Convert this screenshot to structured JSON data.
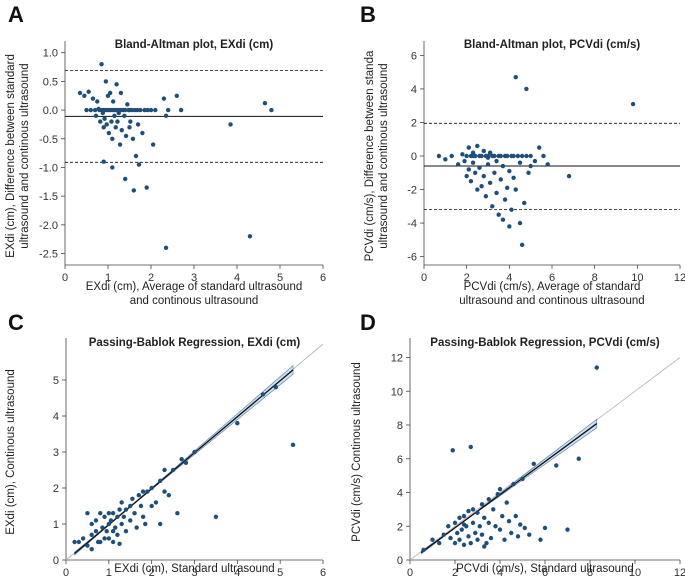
{
  "chart_data": [
    {
      "panel": "A",
      "type": "scatter",
      "title": "Bland-Altman plot, EXdi (cm)",
      "xlabel": [
        "EXdi (cm), Average of standard ultrasound",
        "and continous ultrasound"
      ],
      "ylabel": [
        "EXdi (cm), Difference between standard",
        "ultrasound and continous ultrasound"
      ],
      "xlim": [
        0,
        6
      ],
      "ylim": [
        -2.7,
        1.1
      ],
      "xticks": [
        0,
        1,
        2,
        3,
        4,
        5,
        6
      ],
      "yticks": [
        -2.5,
        -2.0,
        -1.5,
        -1.0,
        -0.5,
        0.0,
        0.5,
        1.0
      ],
      "ytick_labels": [
        "-2.5",
        "-2.0",
        "-1.5",
        "-1.0",
        "-0.5",
        "0.0",
        "0.5",
        "1.0"
      ],
      "mean_line": -0.11,
      "limits": [
        0.69,
        -0.91
      ],
      "points": [
        [
          0.35,
          0.3
        ],
        [
          0.45,
          0.25
        ],
        [
          0.5,
          0.0
        ],
        [
          0.55,
          0.32
        ],
        [
          0.6,
          0.0
        ],
        [
          0.65,
          0.2
        ],
        [
          0.7,
          0.0
        ],
        [
          0.72,
          -0.1
        ],
        [
          0.75,
          0.15
        ],
        [
          0.78,
          0.02
        ],
        [
          0.8,
          0.0
        ],
        [
          0.82,
          -0.2
        ],
        [
          0.85,
          0.8
        ],
        [
          0.86,
          0.0
        ],
        [
          0.88,
          -0.05
        ],
        [
          0.9,
          -0.3
        ],
        [
          0.9,
          0.0
        ],
        [
          0.92,
          -0.15
        ],
        [
          0.95,
          0.0
        ],
        [
          0.95,
          0.5
        ],
        [
          0.97,
          -0.25
        ],
        [
          1.0,
          0.0
        ],
        [
          1.0,
          0.25
        ],
        [
          1.02,
          -0.4
        ],
        [
          1.05,
          0.0
        ],
        [
          1.05,
          0.3
        ],
        [
          1.08,
          -0.2
        ],
        [
          1.1,
          0.0
        ],
        [
          1.1,
          -0.5
        ],
        [
          1.12,
          0.15
        ],
        [
          1.15,
          0.0
        ],
        [
          1.15,
          -0.1
        ],
        [
          1.18,
          -0.3
        ],
        [
          1.2,
          0.0
        ],
        [
          1.2,
          0.45
        ],
        [
          1.22,
          -0.2
        ],
        [
          1.25,
          0.0
        ],
        [
          1.25,
          -0.05
        ],
        [
          1.28,
          -0.6
        ],
        [
          1.3,
          0.0
        ],
        [
          1.3,
          0.3
        ],
        [
          1.32,
          -0.35
        ],
        [
          1.35,
          0.0
        ],
        [
          1.38,
          -0.1
        ],
        [
          1.4,
          0.0
        ],
        [
          1.4,
          -1.2
        ],
        [
          1.42,
          -0.45
        ],
        [
          1.45,
          0.1
        ],
        [
          1.48,
          0.0
        ],
        [
          1.5,
          -0.3
        ],
        [
          1.5,
          0.0
        ],
        [
          1.52,
          -0.2
        ],
        [
          1.55,
          0.0
        ],
        [
          1.58,
          -0.5
        ],
        [
          1.6,
          -1.4
        ],
        [
          1.62,
          0.0
        ],
        [
          1.65,
          -0.8
        ],
        [
          1.68,
          0.0
        ],
        [
          1.7,
          -0.25
        ],
        [
          1.72,
          -0.95
        ],
        [
          1.75,
          0.0
        ],
        [
          1.8,
          -0.4
        ],
        [
          1.85,
          0.0
        ],
        [
          1.9,
          -1.35
        ],
        [
          1.92,
          0.0
        ],
        [
          2.0,
          0.0
        ],
        [
          2.05,
          -0.6
        ],
        [
          2.1,
          0.0
        ],
        [
          2.3,
          0.2
        ],
        [
          2.35,
          -0.1
        ],
        [
          2.35,
          -2.4
        ],
        [
          2.4,
          0.0
        ],
        [
          2.6,
          0.25
        ],
        [
          2.7,
          0.0
        ],
        [
          0.9,
          -0.9
        ],
        [
          3.85,
          -0.25
        ],
        [
          4.3,
          -2.2
        ],
        [
          4.65,
          0.12
        ],
        [
          4.8,
          0.0
        ],
        [
          1.1,
          -1.0
        ]
      ]
    },
    {
      "panel": "B",
      "type": "scatter",
      "title": "Bland-Altman plot, PCVdi (cm/s)",
      "xlabel": [
        "PCVdi (cm/s), Average of standard",
        "ultrasound and continous ultrasound"
      ],
      "ylabel": [
        "PCVdi (cm/s), Difference between standa",
        "ultrasound and continous ultrasound"
      ],
      "xlim": [
        0,
        12
      ],
      "ylim": [
        -6.5,
        6.5
      ],
      "xticks": [
        0,
        2,
        4,
        6,
        8,
        10,
        12
      ],
      "yticks": [
        -6,
        -4,
        -2,
        0,
        2,
        4,
        6
      ],
      "ytick_labels": [
        "-6",
        "-4",
        "-2",
        "0",
        "2",
        "4",
        "6"
      ],
      "mean_line": -0.6,
      "limits": [
        1.95,
        -3.2
      ],
      "points": [
        [
          0.7,
          0.0
        ],
        [
          1.0,
          -0.2
        ],
        [
          1.3,
          0.0
        ],
        [
          1.6,
          -0.5
        ],
        [
          1.8,
          0.1
        ],
        [
          1.9,
          -0.3
        ],
        [
          2.0,
          0.0
        ],
        [
          2.0,
          -1.2
        ],
        [
          2.1,
          0.5
        ],
        [
          2.1,
          -0.8
        ],
        [
          2.2,
          0.0
        ],
        [
          2.2,
          -1.5
        ],
        [
          2.3,
          0.2
        ],
        [
          2.3,
          -0.4
        ],
        [
          2.4,
          0.0
        ],
        [
          2.4,
          -1.0
        ],
        [
          2.5,
          -2.0
        ],
        [
          2.5,
          0.6
        ],
        [
          2.6,
          0.0
        ],
        [
          2.6,
          -0.7
        ],
        [
          2.7,
          -1.8
        ],
        [
          2.7,
          0.0
        ],
        [
          2.8,
          0.3
        ],
        [
          2.8,
          -1.2
        ],
        [
          2.9,
          0.0
        ],
        [
          2.9,
          -2.4
        ],
        [
          3.0,
          -0.5
        ],
        [
          3.0,
          0.0
        ],
        [
          3.1,
          -1.6
        ],
        [
          3.1,
          0.2
        ],
        [
          3.2,
          0.0
        ],
        [
          3.2,
          -3.0
        ],
        [
          3.3,
          -1.0
        ],
        [
          3.3,
          0.0
        ],
        [
          3.4,
          -0.3
        ],
        [
          3.4,
          -2.2
        ],
        [
          3.5,
          0.0
        ],
        [
          3.5,
          -3.5
        ],
        [
          3.6,
          -1.4
        ],
        [
          3.6,
          0.0
        ],
        [
          3.7,
          -0.6
        ],
        [
          3.7,
          -3.8
        ],
        [
          3.8,
          0.0
        ],
        [
          3.8,
          -2.6
        ],
        [
          3.9,
          -1.9
        ],
        [
          3.9,
          0.0
        ],
        [
          4.0,
          -4.2
        ],
        [
          4.0,
          -0.9
        ],
        [
          4.1,
          0.0
        ],
        [
          4.1,
          -3.2
        ],
        [
          4.2,
          -1.3
        ],
        [
          4.2,
          0.0
        ],
        [
          4.3,
          -2.0
        ],
        [
          4.3,
          4.7
        ],
        [
          4.4,
          0.0
        ],
        [
          4.5,
          -4.0
        ],
        [
          4.5,
          -0.4
        ],
        [
          4.6,
          0.0
        ],
        [
          4.6,
          -5.3
        ],
        [
          4.7,
          -2.8
        ],
        [
          4.8,
          0.0
        ],
        [
          4.8,
          4.0
        ],
        [
          4.9,
          -1.0
        ],
        [
          5.0,
          0.0
        ],
        [
          5.0,
          -0.6
        ],
        [
          5.2,
          -0.3
        ],
        [
          5.4,
          0.5
        ],
        [
          5.6,
          0.0
        ],
        [
          5.8,
          -0.5
        ],
        [
          6.8,
          -1.2
        ],
        [
          9.8,
          3.1
        ],
        [
          2.3,
          0.0
        ],
        [
          3.0,
          -0.1
        ]
      ]
    },
    {
      "panel": "C",
      "type": "scatter",
      "title": "Passing-Bablok Regression, EXdi (cm)",
      "xlabel": [
        "EXdi (cm), Standard ultrasound"
      ],
      "ylabel": [
        "EXdi (cm), Continous ultrasound"
      ],
      "xlim": [
        0,
        6
      ],
      "ylim": [
        0,
        6
      ],
      "xticks": [
        0,
        1,
        2,
        3,
        4,
        5,
        6
      ],
      "yticks": [
        0,
        1,
        2,
        3,
        4,
        5
      ],
      "ytick_labels": [
        "0",
        "1",
        "2",
        "3",
        "4",
        "5"
      ],
      "regression": {
        "x_from": 0.2,
        "x_to": 5.3,
        "slope": 1.0,
        "intercept": -0.02,
        "ci_delta": 0.12
      },
      "identity": true,
      "points": [
        [
          0.2,
          0.5
        ],
        [
          0.3,
          0.5
        ],
        [
          0.4,
          0.6
        ],
        [
          0.5,
          0.4
        ],
        [
          0.5,
          1.3
        ],
        [
          0.6,
          0.7
        ],
        [
          0.6,
          0.3
        ],
        [
          0.7,
          0.8
        ],
        [
          0.7,
          1.1
        ],
        [
          0.8,
          0.5
        ],
        [
          0.8,
          1.3
        ],
        [
          0.85,
          0.9
        ],
        [
          0.9,
          0.6
        ],
        [
          0.9,
          1.2
        ],
        [
          0.95,
          0.8
        ],
        [
          1.0,
          1.0
        ],
        [
          1.0,
          1.3
        ],
        [
          1.0,
          0.6
        ],
        [
          1.05,
          1.1
        ],
        [
          1.1,
          0.8
        ],
        [
          1.1,
          1.3
        ],
        [
          1.15,
          0.9
        ],
        [
          1.2,
          1.2
        ],
        [
          1.2,
          0.7
        ],
        [
          1.25,
          1.4
        ],
        [
          1.3,
          1.0
        ],
        [
          1.3,
          1.6
        ],
        [
          1.35,
          1.2
        ],
        [
          1.4,
          1.4
        ],
        [
          1.4,
          0.8
        ],
        [
          1.5,
          1.5
        ],
        [
          1.5,
          1.1
        ],
        [
          1.55,
          1.7
        ],
        [
          1.6,
          1.3
        ],
        [
          1.65,
          0.9
        ],
        [
          1.7,
          1.8
        ],
        [
          1.75,
          1.5
        ],
        [
          1.8,
          1.9
        ],
        [
          1.8,
          1.2
        ],
        [
          1.85,
          1.0
        ],
        [
          1.9,
          1.9
        ],
        [
          2.0,
          2.0
        ],
        [
          2.0,
          1.5
        ],
        [
          2.1,
          1.6
        ],
        [
          2.2,
          2.2
        ],
        [
          2.2,
          1.0
        ],
        [
          2.3,
          2.5
        ],
        [
          2.3,
          1.9
        ],
        [
          2.4,
          1.8
        ],
        [
          2.5,
          2.5
        ],
        [
          2.6,
          1.3
        ],
        [
          2.7,
          2.8
        ],
        [
          2.8,
          2.7
        ],
        [
          3.0,
          3.0
        ],
        [
          3.5,
          1.2
        ],
        [
          4.0,
          3.8
        ],
        [
          4.6,
          4.6
        ],
        [
          4.9,
          4.8
        ],
        [
          5.3,
          3.2
        ],
        [
          1.1,
          0.5
        ],
        [
          0.6,
          1.0
        ],
        [
          1.25,
          0.45
        ],
        [
          0.75,
          0.5
        ]
      ]
    },
    {
      "panel": "D",
      "type": "scatter",
      "title": "Passing-Bablok Regression, PCVdi (cm/s)",
      "xlabel": [
        "PCVdi (cm/s), Standard ultrasound"
      ],
      "ylabel": [
        "PCVdi (cm/s) Continous ultrasound"
      ],
      "xlim": [
        0,
        12
      ],
      "ylim": [
        0,
        12.8
      ],
      "xticks": [
        0,
        2,
        4,
        6,
        8,
        10,
        12
      ],
      "yticks": [
        0,
        2,
        4,
        6,
        8,
        10,
        12
      ],
      "ytick_labels": [
        "0",
        "2",
        "4",
        "6",
        "8",
        "10",
        "12"
      ],
      "regression": {
        "x_from": 0.5,
        "x_to": 8.3,
        "slope": 0.98,
        "intercept": -0.05,
        "ci_delta": 0.25
      },
      "identity": true,
      "points": [
        [
          0.6,
          0.6
        ],
        [
          1.0,
          1.2
        ],
        [
          1.3,
          1.0
        ],
        [
          1.5,
          1.5
        ],
        [
          1.7,
          2.0
        ],
        [
          1.8,
          1.3
        ],
        [
          1.9,
          6.5
        ],
        [
          2.0,
          2.2
        ],
        [
          2.0,
          1.0
        ],
        [
          2.1,
          1.6
        ],
        [
          2.2,
          2.5
        ],
        [
          2.2,
          1.2
        ],
        [
          2.3,
          1.8
        ],
        [
          2.4,
          2.6
        ],
        [
          2.4,
          0.9
        ],
        [
          2.5,
          2.0
        ],
        [
          2.6,
          1.4
        ],
        [
          2.6,
          2.9
        ],
        [
          2.7,
          6.7
        ],
        [
          2.7,
          1.0
        ],
        [
          2.8,
          2.2
        ],
        [
          2.8,
          3.0
        ],
        [
          2.9,
          1.6
        ],
        [
          3.0,
          2.8
        ],
        [
          3.0,
          1.2
        ],
        [
          3.1,
          2.0
        ],
        [
          3.2,
          3.3
        ],
        [
          3.2,
          1.5
        ],
        [
          3.3,
          2.5
        ],
        [
          3.4,
          1.0
        ],
        [
          3.5,
          3.6
        ],
        [
          3.5,
          2.2
        ],
        [
          3.6,
          1.3
        ],
        [
          3.7,
          3.0
        ],
        [
          3.8,
          2.0
        ],
        [
          3.9,
          3.9
        ],
        [
          4.0,
          1.8
        ],
        [
          4.0,
          4.2
        ],
        [
          4.1,
          2.6
        ],
        [
          4.2,
          1.2
        ],
        [
          4.3,
          3.4
        ],
        [
          4.4,
          2.3
        ],
        [
          4.5,
          1.6
        ],
        [
          4.6,
          4.5
        ],
        [
          4.7,
          2.6
        ],
        [
          4.8,
          1.4
        ],
        [
          4.9,
          2.1
        ],
        [
          5.0,
          4.8
        ],
        [
          5.1,
          1.9
        ],
        [
          5.3,
          1.5
        ],
        [
          5.5,
          5.7
        ],
        [
          5.8,
          1.2
        ],
        [
          6.0,
          1.9
        ],
        [
          6.5,
          5.6
        ],
        [
          7.0,
          1.8
        ],
        [
          7.5,
          6.0
        ],
        [
          8.3,
          11.4
        ],
        [
          3.3,
          0.8
        ],
        [
          2.4,
          2.1
        ]
      ]
    }
  ]
}
